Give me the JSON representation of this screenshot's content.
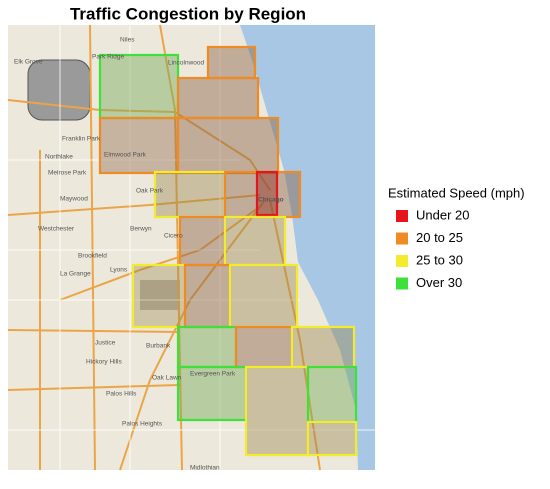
{
  "title": "Traffic Congestion by Region",
  "legend": {
    "title": "Estimated Speed (mph)",
    "items": [
      {
        "label": "Under 20",
        "color": "#e8141c"
      },
      {
        "label": "20 to 25",
        "color": "#f08a24"
      },
      {
        "label": "25 to 30",
        "color": "#f2ec2c"
      },
      {
        "label": "Over 30",
        "color": "#3ee03a"
      }
    ]
  },
  "places": [
    "Niles",
    "Elk Grove",
    "Park Ridge",
    "Lincolnwood",
    "Franklin Park",
    "Northlake",
    "Elmwood Park",
    "Melrose Park",
    "Oak Park",
    "Maywood",
    "Westchester",
    "Berwyn",
    "Cicero",
    "Brookfield",
    "La Grange",
    "Lyons",
    "Chicago",
    "Justice",
    "Burbank",
    "Hickory Hills",
    "Oak Lawn",
    "Palos Hills",
    "Palos Heights",
    "Evergreen Park",
    "Midlothian"
  ]
}
